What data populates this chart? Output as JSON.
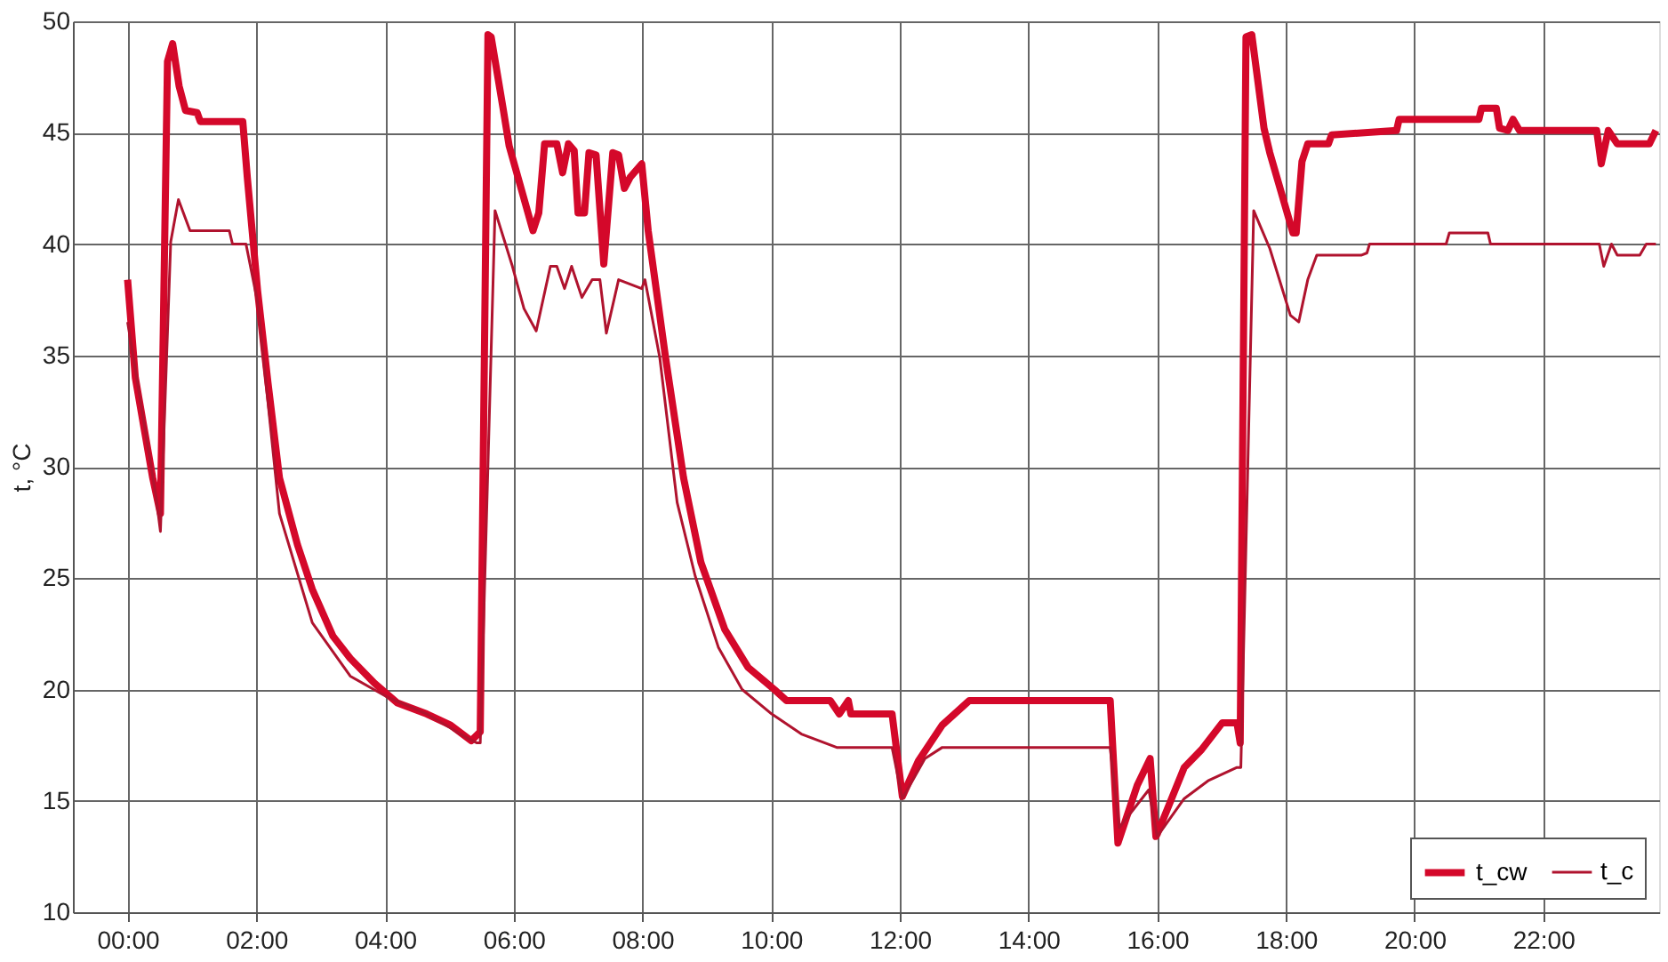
{
  "chart_data": {
    "type": "line",
    "ylabel": "t, °C",
    "xlim": [
      -0.85,
      23.8
    ],
    "ylim": [
      10,
      50
    ],
    "xticks": [
      {
        "value": 0,
        "label": "00:00"
      },
      {
        "value": 2,
        "label": "02:00"
      },
      {
        "value": 4,
        "label": "04:00"
      },
      {
        "value": 6,
        "label": "06:00"
      },
      {
        "value": 8,
        "label": "08:00"
      },
      {
        "value": 10,
        "label": "10:00"
      },
      {
        "value": 12,
        "label": "12:00"
      },
      {
        "value": 14,
        "label": "14:00"
      },
      {
        "value": 16,
        "label": "16:00"
      },
      {
        "value": 18,
        "label": "18:00"
      },
      {
        "value": 20,
        "label": "20:00"
      },
      {
        "value": 22,
        "label": "22:00"
      }
    ],
    "yticks": [
      10,
      15,
      20,
      25,
      30,
      35,
      40,
      45,
      50
    ],
    "grid": true,
    "legend": "bottom right",
    "marker": "none",
    "line_style": "solid",
    "series": [
      {
        "name": "t_cw",
        "color": "#d4082a",
        "x": [
          0,
          0.12,
          0.39,
          0.51,
          0.62,
          0.7,
          0.8,
          0.9,
          1.08,
          1.13,
          1.79,
          1.86,
          2.02,
          2.18,
          2.36,
          2.64,
          2.87,
          3.19,
          3.46,
          3.83,
          4.19,
          4.65,
          5.02,
          5.34,
          5.48,
          5.6,
          5.65,
          5.84,
          5.93,
          6.3,
          6.39,
          6.48,
          6.67,
          6.76,
          6.85,
          6.94,
          7.0,
          7.1,
          7.17,
          7.28,
          7.4,
          7.54,
          7.63,
          7.72,
          7.81,
          7.99,
          8.09,
          8.36,
          8.64,
          8.91,
          9.28,
          9.64,
          10.05,
          10.24,
          10.92,
          11.06,
          11.2,
          11.24,
          11.88,
          12.04,
          12.29,
          12.66,
          13.08,
          15.27,
          15.39,
          15.69,
          15.89,
          15.98,
          16.0,
          16.42,
          16.69,
          17.01,
          17.24,
          17.29,
          17.38,
          17.47,
          17.66,
          17.75,
          18.11,
          18.16,
          18.25,
          18.34,
          18.66,
          18.71,
          19.72,
          19.76,
          21.0,
          21.04,
          21.27,
          21.32,
          21.45,
          21.53,
          21.63,
          22.83,
          22.9,
          23.01,
          23.15,
          23.65,
          23.75
        ],
        "values": [
          38.4,
          34.0,
          29.5,
          27.9,
          48.2,
          49.0,
          47.1,
          46.0,
          45.9,
          45.5,
          45.5,
          43.0,
          37.9,
          33.8,
          29.5,
          26.5,
          24.5,
          22.4,
          21.4,
          20.3,
          19.4,
          18.9,
          18.4,
          17.7,
          18.1,
          49.4,
          49.3,
          46.0,
          44.4,
          40.6,
          41.4,
          44.5,
          44.5,
          43.2,
          44.5,
          44.2,
          41.4,
          41.4,
          44.1,
          44.0,
          39.1,
          44.1,
          44.0,
          42.5,
          43.0,
          43.6,
          40.6,
          34.9,
          29.5,
          25.7,
          22.7,
          21.0,
          20.0,
          19.5,
          19.5,
          18.9,
          19.5,
          18.9,
          18.9,
          15.2,
          16.8,
          18.4,
          19.5,
          19.5,
          13.1,
          15.7,
          16.9,
          13.4,
          13.5,
          16.5,
          17.3,
          18.5,
          18.5,
          17.6,
          49.3,
          49.4,
          45.2,
          44.1,
          40.5,
          40.5,
          43.7,
          44.5,
          44.5,
          44.9,
          45.1,
          45.6,
          45.6,
          46.1,
          46.1,
          45.2,
          45.1,
          45.6,
          45.1,
          45.1,
          43.6,
          45.1,
          44.5,
          44.5,
          45.1
        ]
      },
      {
        "name": "t_c",
        "color": "#b0132e",
        "x": [
          0,
          0.44,
          0.51,
          0.67,
          0.79,
          0.97,
          1.58,
          1.63,
          1.84,
          2.02,
          2.36,
          2.87,
          3.46,
          4.01,
          4.65,
          5.29,
          5.43,
          5.48,
          5.71,
          5.84,
          5.98,
          6.16,
          6.35,
          6.57,
          6.67,
          6.79,
          6.9,
          7.06,
          7.22,
          7.34,
          7.44,
          7.63,
          7.99,
          8.04,
          8.27,
          8.54,
          8.82,
          9.18,
          9.55,
          10.01,
          10.47,
          11.02,
          11.88,
          12.04,
          12.39,
          12.66,
          15.27,
          15.41,
          15.87,
          16.0,
          16.42,
          16.79,
          17.24,
          17.3,
          17.5,
          17.75,
          18.07,
          18.2,
          18.34,
          18.48,
          19.17,
          19.26,
          19.3,
          20.49,
          20.54,
          21.14,
          21.18,
          22.87,
          22.94,
          23.06,
          23.15,
          23.5,
          23.6,
          23.75
        ],
        "values": [
          36.5,
          28.7,
          27.1,
          40.1,
          42.0,
          40.6,
          40.6,
          40.0,
          40.0,
          37.4,
          27.9,
          23.0,
          20.6,
          19.7,
          18.9,
          17.8,
          17.6,
          17.6,
          41.5,
          40.3,
          39.0,
          37.1,
          36.1,
          39.0,
          39.0,
          38.0,
          39.0,
          37.6,
          38.4,
          38.4,
          36.0,
          38.4,
          38.0,
          38.4,
          34.9,
          28.4,
          25.1,
          21.9,
          20.0,
          18.9,
          18.0,
          17.4,
          17.4,
          15.1,
          16.9,
          17.4,
          17.4,
          13.8,
          15.5,
          13.4,
          15.1,
          15.9,
          16.5,
          16.5,
          41.5,
          39.8,
          36.8,
          36.5,
          38.4,
          39.5,
          39.5,
          39.6,
          40.0,
          40.0,
          40.5,
          40.5,
          40.0,
          40.0,
          39.0,
          40.0,
          39.5,
          39.5,
          40.0,
          40.0
        ]
      }
    ]
  }
}
